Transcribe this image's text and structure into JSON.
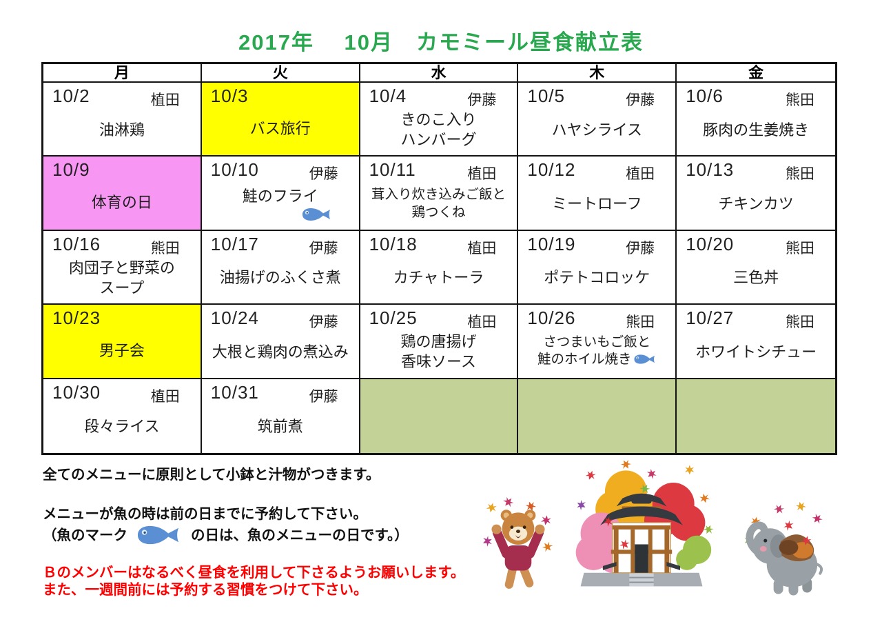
{
  "page": {
    "title": "2017年　 10月　カモミール昼食献立表"
  },
  "calendar": {
    "day_headers": [
      "月",
      "火",
      "水",
      "木",
      "金"
    ],
    "weeks": [
      [
        {
          "date": "10/2",
          "staff": "植田",
          "menu": [
            "油淋鶏"
          ],
          "bg": "white"
        },
        {
          "date": "10/3",
          "staff": "",
          "menu": [
            "バス旅行"
          ],
          "bg": "yellow"
        },
        {
          "date": "10/4",
          "staff": "伊藤",
          "menu": [
            "きのこ入り",
            "ハンバーグ"
          ],
          "bg": "white"
        },
        {
          "date": "10/5",
          "staff": "伊藤",
          "menu": [
            "ハヤシライス"
          ],
          "bg": "white"
        },
        {
          "date": "10/6",
          "staff": "熊田",
          "menu": [
            "豚肉の生姜焼き"
          ],
          "bg": "white"
        }
      ],
      [
        {
          "date": "10/9",
          "staff": "",
          "menu": [
            "体育の日"
          ],
          "bg": "pink"
        },
        {
          "date": "10/10",
          "staff": "伊藤",
          "menu": [
            "鮭のフライ"
          ],
          "bg": "white",
          "fish": "below"
        },
        {
          "date": "10/11",
          "staff": "植田",
          "menu": [
            "茸入り炊き込みご飯と",
            "鶏つくね"
          ],
          "bg": "white",
          "small": true
        },
        {
          "date": "10/12",
          "staff": "植田",
          "menu": [
            "ミートローフ"
          ],
          "bg": "white"
        },
        {
          "date": "10/13",
          "staff": "熊田",
          "menu": [
            "チキンカツ"
          ],
          "bg": "white"
        }
      ],
      [
        {
          "date": "10/16",
          "staff": "熊田",
          "menu": [
            "肉団子と野菜の",
            "スープ"
          ],
          "bg": "white"
        },
        {
          "date": "10/17",
          "staff": "伊藤",
          "menu": [
            "油揚げのふくさ煮"
          ],
          "bg": "white"
        },
        {
          "date": "10/18",
          "staff": "植田",
          "menu": [
            "カチャトーラ"
          ],
          "bg": "white"
        },
        {
          "date": "10/19",
          "staff": "伊藤",
          "menu": [
            "ポテトコロッケ"
          ],
          "bg": "white"
        },
        {
          "date": "10/20",
          "staff": "熊田",
          "menu": [
            "三色丼"
          ],
          "bg": "white"
        }
      ],
      [
        {
          "date": "10/23",
          "staff": "",
          "menu": [
            "男子会"
          ],
          "bg": "yellow"
        },
        {
          "date": "10/24",
          "staff": "伊藤",
          "menu": [
            "大根と鶏肉の煮込み"
          ],
          "bg": "white"
        },
        {
          "date": "10/25",
          "staff": "植田",
          "menu": [
            "鶏の唐揚げ",
            "香味ソース"
          ],
          "bg": "white"
        },
        {
          "date": "10/26",
          "staff": "熊田",
          "menu": [
            "さつまいもご飯と",
            "鮭のホイル焼き"
          ],
          "bg": "white",
          "fish": "inline",
          "small": true
        },
        {
          "date": "10/27",
          "staff": "熊田",
          "menu": [
            "ホワイトシチュー"
          ],
          "bg": "white"
        }
      ],
      [
        {
          "date": "10/30",
          "staff": "植田",
          "menu": [
            "段々ライス"
          ],
          "bg": "white"
        },
        {
          "date": "10/31",
          "staff": "伊藤",
          "menu": [
            "筑前煮"
          ],
          "bg": "white"
        },
        {
          "date": "",
          "staff": "",
          "menu": [],
          "bg": "green"
        },
        {
          "date": "",
          "staff": "",
          "menu": [],
          "bg": "green"
        },
        {
          "date": "",
          "staff": "",
          "menu": [],
          "bg": "green"
        }
      ]
    ]
  },
  "notes": {
    "line1": "全てのメニューに原則として小鉢と汁物がつきます。",
    "line2": "メニューが魚の時は前の日までに予約して下さい。",
    "line3_before": "（魚のマーク",
    "line3_after": "の日は、魚のメニューの日です。）",
    "red1": "Ｂのメンバーはなるべく昼食を利用して下さるようお願いします。",
    "red2": "また、一週間前には予約する習慣をつけて下さい。"
  },
  "illustrations": [
    "dancing-bear-with-autumn-leaves",
    "temple-with-autumn-foliage",
    "elephant-with-autumn-leaves"
  ],
  "colors": {
    "title_green": "#2aa84f",
    "highlight_yellow": "#ffff00",
    "highlight_pink": "#f796f3",
    "empty_cell_green": "#c3d296",
    "fish_blue": "#5b8fd4",
    "warning_red": "#ff0000"
  }
}
